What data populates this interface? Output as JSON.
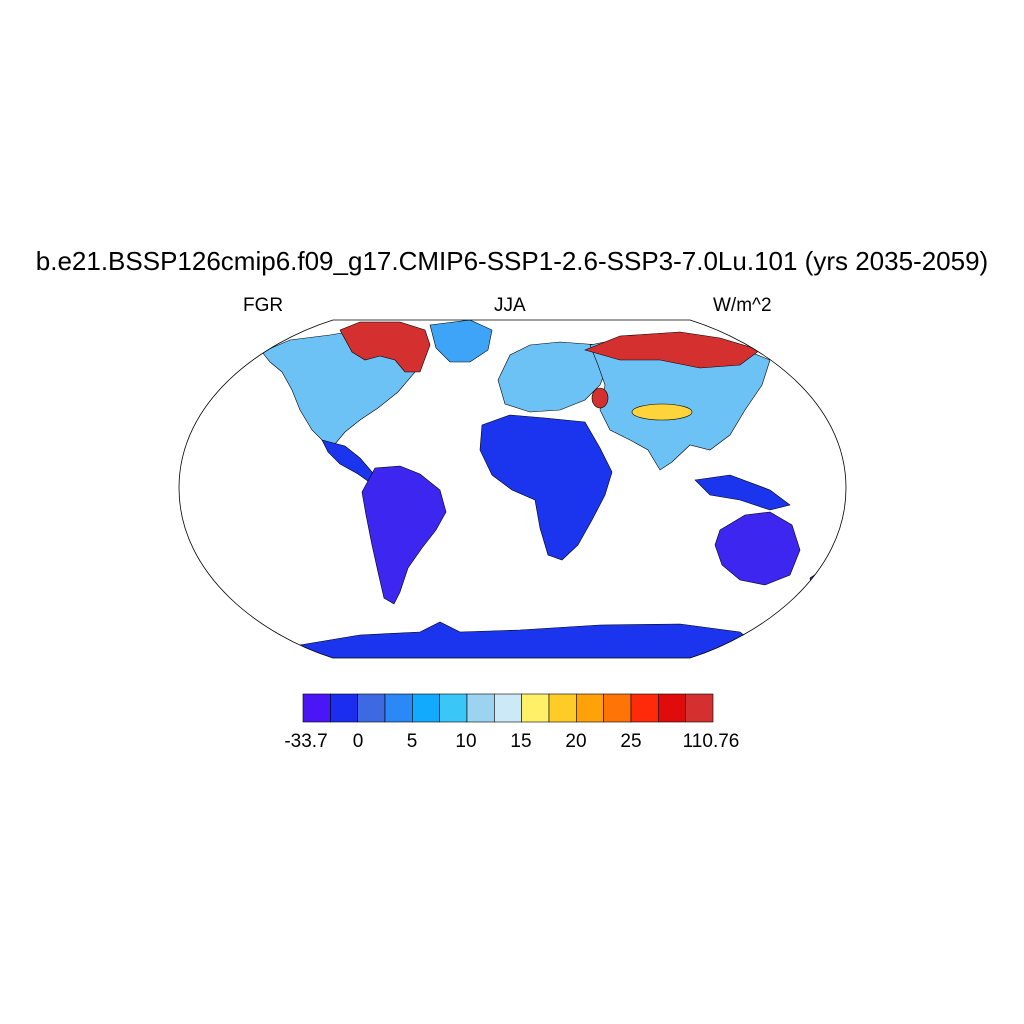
{
  "title": "b.e21.BSSP126cmip6.f09_g17.CMIP6-SSP1-2.6-SSP3-7.0Lu.101 (yrs 2035-2059)",
  "variable": "FGR",
  "season": "JJA",
  "units": "W/m^2",
  "colorbar": {
    "colors": [
      "#4a16f5",
      "#1b2ef0",
      "#3d69e2",
      "#2a88f7",
      "#12aafc",
      "#3ac6f7",
      "#9cd3f0",
      "#cce9f7",
      "#fff067",
      "#ffcb26",
      "#ffa20a",
      "#ff7407",
      "#ff2a0a",
      "#e00b0b",
      "#d3302f"
    ],
    "labels": [
      "-33.7",
      "0",
      "5",
      "10",
      "15",
      "20",
      "25",
      "110.76"
    ]
  },
  "map_colors": {
    "land_cold": "#3d27f0",
    "land_blue": "#1b35ee",
    "land_mid": "#3da4f7",
    "land_light": "#6cc2f5",
    "land_pale": "#a8d6f3",
    "land_warm": "#ffd43a",
    "land_hot": "#d3302f",
    "ocean": "#ffffff",
    "outline": "#000000"
  }
}
